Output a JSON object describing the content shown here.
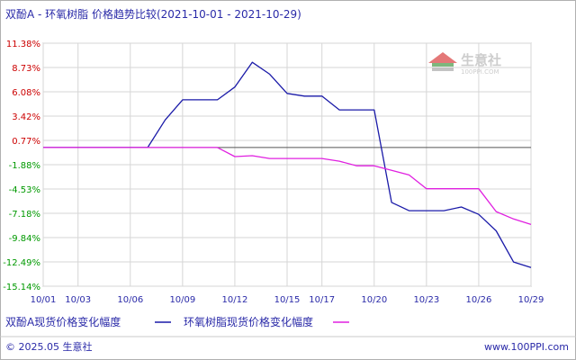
{
  "chart_data": {
    "type": "line",
    "title": "双酚A - 环氧树脂 价格趋势比较(2021-10-01 - 2021-10-29)",
    "y_ticks": [
      "11.38%",
      "8.73%",
      "6.08%",
      "3.42%",
      "0.77%",
      "-1.88%",
      "-4.53%",
      "-7.18%",
      "-9.84%",
      "-12.49%",
      "-15.14%"
    ],
    "y_tick_values": [
      11.38,
      8.73,
      6.08,
      3.42,
      0.77,
      -1.88,
      -4.53,
      -7.18,
      -9.84,
      -12.49,
      -15.14
    ],
    "ylim": [
      -15.14,
      11.38
    ],
    "x_ticks": [
      "10/01",
      "10/03",
      "10/06",
      "10/09",
      "10/12",
      "10/15",
      "10/17",
      "10/20",
      "10/23",
      "10/26",
      "10/29"
    ],
    "x_domain": [
      "10/01",
      "10/29"
    ],
    "grid": true,
    "series": [
      {
        "name": "双酚A现货价格变化幅度",
        "color": "#1a1aa8",
        "x": [
          "10/01",
          "10/07",
          "10/08",
          "10/09",
          "10/10",
          "10/11",
          "10/12",
          "10/13",
          "10/14",
          "10/15",
          "10/16",
          "10/17",
          "10/18",
          "10/19",
          "10/20",
          "10/21",
          "10/22",
          "10/23",
          "10/24",
          "10/25",
          "10/26",
          "10/27",
          "10/28",
          "10/29"
        ],
        "values": [
          0,
          0,
          3.0,
          5.2,
          5.2,
          5.2,
          6.6,
          9.3,
          8.0,
          5.9,
          5.6,
          5.6,
          4.1,
          4.1,
          4.1,
          -6.0,
          -6.9,
          -6.9,
          -6.9,
          -6.5,
          -7.3,
          -9.1,
          -12.5,
          -13.1
        ]
      },
      {
        "name": "环氧树脂现货价格变化幅度",
        "color": "#e020e0",
        "x": [
          "10/01",
          "10/02",
          "10/03",
          "10/04",
          "10/05",
          "10/06",
          "10/07",
          "10/08",
          "10/09",
          "10/10",
          "10/11",
          "10/12",
          "10/13",
          "10/14",
          "10/15",
          "10/16",
          "10/17",
          "10/18",
          "10/19",
          "10/20",
          "10/21",
          "10/22",
          "10/23",
          "10/24",
          "10/25",
          "10/26",
          "10/27",
          "10/28",
          "10/29"
        ],
        "values": [
          0,
          0,
          0,
          0,
          0,
          0,
          0,
          0,
          0,
          0,
          0,
          -1.0,
          -0.9,
          -1.2,
          -1.2,
          -1.2,
          -1.2,
          -1.5,
          -2.0,
          -2.0,
          -2.5,
          -3.0,
          -4.5,
          -4.5,
          -4.5,
          -4.5,
          -7.0,
          -7.8,
          -8.4
        ]
      }
    ]
  },
  "legend": [
    {
      "label": "双酚A现货价格变化幅度",
      "color": "#1a1aa8"
    },
    {
      "label": "环氧树脂现货价格变化幅度",
      "color": "#e020e0"
    }
  ],
  "footer": {
    "copyright": "© 2025.05 生意社",
    "website": "www.100PPI.com"
  },
  "watermark": {
    "name": "生意社",
    "url": "100PPI.COM"
  },
  "colors": {
    "positive_tick": "#cc0000",
    "negative_tick": "#009900",
    "zero_line": "#555555",
    "grid": "#d6d6d6"
  }
}
